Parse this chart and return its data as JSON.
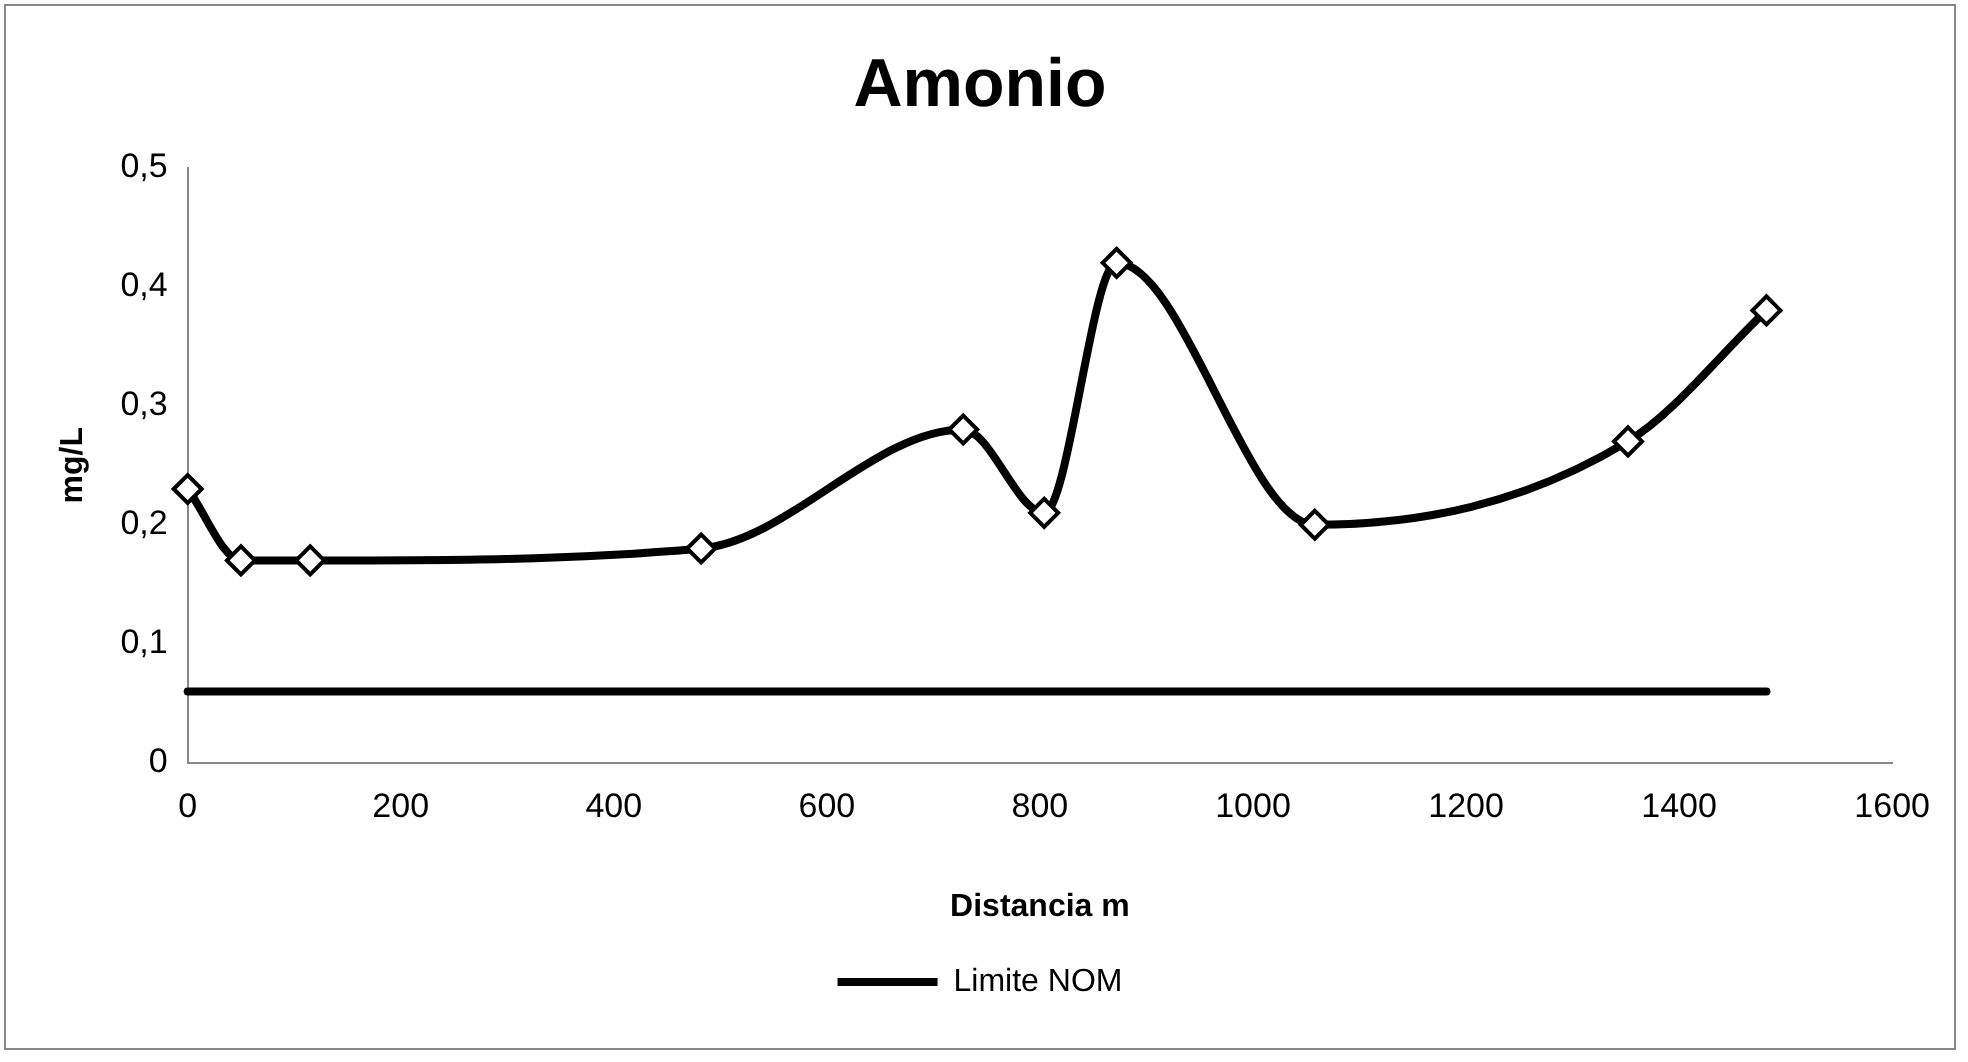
{
  "chart_data": {
    "type": "line",
    "title": "Amonio",
    "xlabel": "Distancia m",
    "ylabel": "mg/L",
    "xlim": [
      0,
      1600
    ],
    "xticks": [
      0,
      200,
      400,
      600,
      800,
      1000,
      1200,
      1400,
      1600
    ],
    "ylim": [
      0,
      0.5
    ],
    "yticks": [
      {
        "value": 0,
        "label": "0"
      },
      {
        "value": 0.1,
        "label": "0,1"
      },
      {
        "value": 0.2,
        "label": "0,2"
      },
      {
        "value": 0.3,
        "label": "0,3"
      },
      {
        "value": 0.4,
        "label": "0,4"
      },
      {
        "value": 0.5,
        "label": "0,5"
      }
    ],
    "grid": false,
    "legend": "bottom",
    "series": [
      {
        "color": "#000000",
        "marker": "diamond",
        "x": [
          0,
          50,
          115,
          482,
          728,
          804,
          872,
          1058,
          1352,
          1482
        ],
        "values": [
          0.23,
          0.17,
          0.17,
          0.18,
          0.28,
          0.21,
          0.42,
          0.2,
          0.27,
          0.38
        ]
      },
      {
        "name": "Limite NOM",
        "color": "#000000",
        "marker": "none",
        "x": [
          0,
          1482
        ],
        "values": [
          0.06,
          0.06
        ]
      }
    ]
  }
}
